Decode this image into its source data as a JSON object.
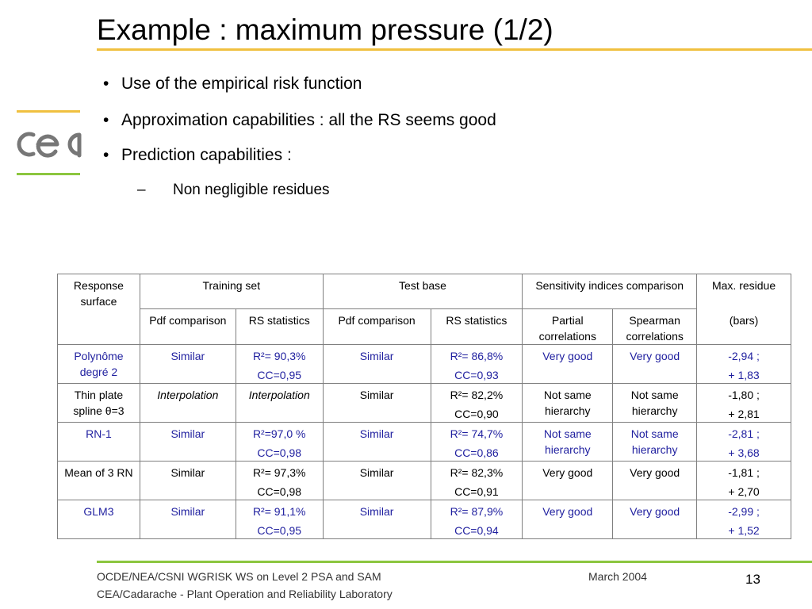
{
  "title": "Example : maximum pressure (1/2)",
  "logo": {
    "text": "cea",
    "icon": "cea-logo"
  },
  "bullets": [
    {
      "marker": "•",
      "text": "Use of the empirical risk function"
    },
    {
      "marker": "•",
      "text": "Approximation capabilities : all the RS seems good"
    },
    {
      "marker": "•",
      "text": "Prediction capabilities :"
    }
  ],
  "sub_bullets": [
    {
      "marker": "–",
      "text": "Non negligible residues"
    }
  ],
  "table": {
    "header": {
      "response_surface": "Response surface",
      "training_set": "Training set",
      "test_base": "Test base",
      "sensitivity": "Sensitivity indices comparison",
      "max_residue": "Max. residue",
      "pdf_comparison_train": "Pdf comparison",
      "rs_statistics_train": "RS statistics",
      "pdf_comparison_test": "Pdf comparison",
      "rs_statistics_test": "RS statistics",
      "partial": "Partial correlations",
      "spearman": "Spearman correlations",
      "bars": "(bars)"
    },
    "rows": [
      {
        "name": "Polynôme degré 2",
        "train_pdf": "Similar",
        "train_r2": "R²= 90,3%",
        "train_cc": "CC=0,95",
        "test_pdf": "Similar",
        "test_r2": "R²= 86,8%",
        "test_cc": "CC=0,93",
        "partial": "Very good",
        "spearman": "Very good",
        "res_min": "-2,94 ;",
        "res_max": "+ 1,83"
      },
      {
        "name": "Thin plate spline θ=3",
        "train_pdf": "Interpolation",
        "train_r2": "Interpolation",
        "train_cc": "",
        "test_pdf": "Similar",
        "test_r2": "R²= 82,2%",
        "test_cc": "CC=0,90",
        "partial": "Not same hierarchy",
        "spearman": "Not same hierarchy",
        "res_min": "-1,80 ;",
        "res_max": "+ 2,81"
      },
      {
        "name": "RN-1",
        "train_pdf": "Similar",
        "train_r2": "R²=97,0 %",
        "train_cc": "CC=0,98",
        "test_pdf": "Similar",
        "test_r2": "R²= 74,7%",
        "test_cc": "CC=0,86",
        "partial": "Not same hierarchy",
        "spearman": "Not same hierarchy",
        "res_min": "-2,81 ;",
        "res_max": "+ 3,68"
      },
      {
        "name": "Mean of 3 RN",
        "train_pdf": "Similar",
        "train_r2": "R²= 97,3%",
        "train_cc": "CC=0,98",
        "test_pdf": "Similar",
        "test_r2": "R²= 82,3%",
        "test_cc": "CC=0,91",
        "partial": "Very good",
        "spearman": "Very good",
        "res_min": "-1,81 ;",
        "res_max": "+ 2,70"
      },
      {
        "name": "GLM3",
        "train_pdf": "Similar",
        "train_r2": "R²= 91,1%",
        "train_cc": "CC=0,95",
        "test_pdf": "Similar",
        "test_r2": "R²= 87,9%",
        "test_cc": "CC=0,94",
        "partial": "Very good",
        "spearman": "Very good",
        "res_min": "-2,99 ;",
        "res_max": "+ 1,52"
      }
    ]
  },
  "footer": {
    "line1": "OCDE/NEA/CSNI WGRISK WS on Level 2 PSA and SAM",
    "line2": "CEA/Cadarache - Plant Operation and Reliability Laboratory",
    "date": "March 2004",
    "page": "13"
  },
  "colors": {
    "title_rule": "#f0c040",
    "footer_rule": "#8cc63f",
    "highlight_text": "#1f1f9f"
  }
}
